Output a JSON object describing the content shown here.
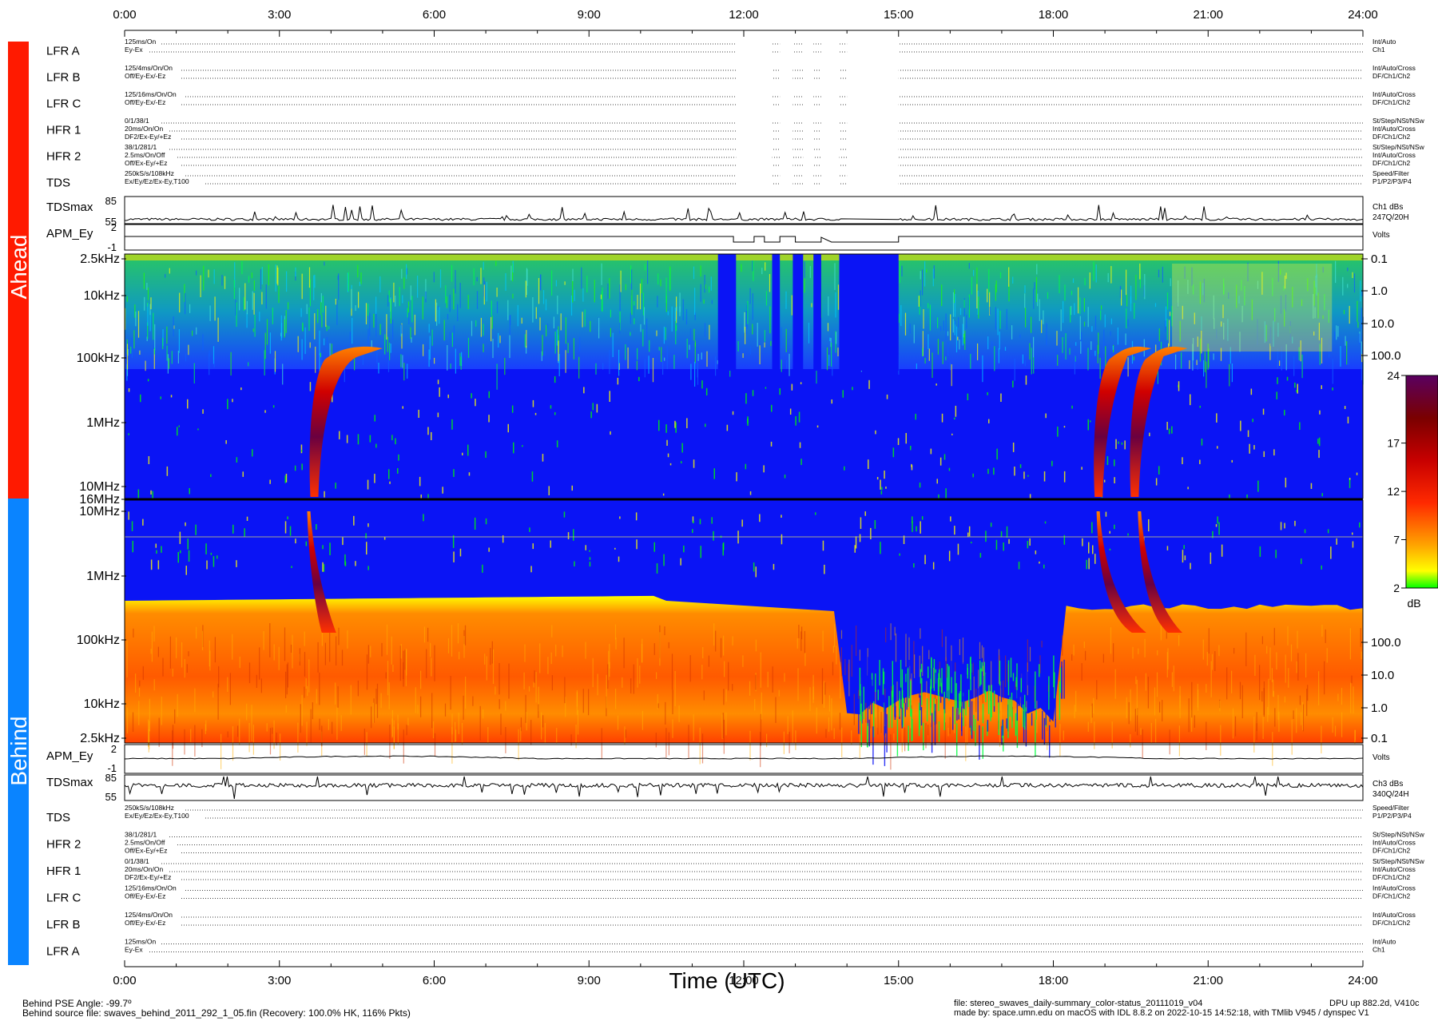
{
  "chart_data": {
    "type": "heatmap",
    "title": "",
    "xlabel": "Time (UTC)",
    "x_ticks": [
      "0:00",
      "3:00",
      "6:00",
      "9:00",
      "12:00",
      "15:00",
      "18:00",
      "21:00",
      "24:00"
    ],
    "x_range_hours": [
      0,
      24
    ],
    "colorbar": {
      "label": "dB",
      "ticks": [
        "24",
        "17",
        "12",
        "7",
        "2"
      ],
      "range": [
        2,
        24
      ],
      "colors": [
        "#00ff00",
        "#ffff00",
        "#ffa500",
        "#ff0000",
        "#aa0000",
        "#6a0000",
        "#5a0060"
      ]
    },
    "spacecraft": [
      {
        "name": "Ahead",
        "color": "#ff1a00"
      },
      {
        "name": "Behind",
        "color": "#0a84ff"
      }
    ],
    "ahead_spectrogram": {
      "y_labels_left": [
        "2.5kHz",
        "10kHz",
        "100kHz",
        "1MHz",
        "10MHz",
        "16MHz"
      ],
      "y_labels_right": [
        "0.1",
        "1.0",
        "10.0",
        "100.0"
      ],
      "data_gaps_hours": [
        [
          12.55,
          12.7
        ],
        [
          12.95,
          13.15
        ],
        [
          13.35,
          13.5
        ],
        [
          13.85,
          15.0
        ]
      ],
      "radio_bursts": [
        {
          "start_hour": 3.6,
          "end_hour": 5.0,
          "peak_db": 24
        },
        {
          "start_hour": 18.8,
          "end_hour": 19.9,
          "peak_db": 24
        },
        {
          "start_hour": 19.5,
          "end_hour": 20.6,
          "peak_db": 24
        }
      ]
    },
    "behind_spectrogram": {
      "y_labels_left": [
        "10MHz",
        "1MHz",
        "100kHz",
        "10kHz",
        "2.5kHz"
      ],
      "y_labels_right": [
        "100.0",
        "10.0",
        "1.0",
        "0.1"
      ],
      "radio_bursts": [
        {
          "start_hour": 3.6,
          "end_hour": 4.1,
          "peak_db": 20
        },
        {
          "start_hour": 18.9,
          "end_hour": 19.8,
          "peak_db": 24
        },
        {
          "start_hour": 19.7,
          "end_hour": 20.5,
          "peak_db": 22
        }
      ]
    },
    "ahead_tdsmax": {
      "label": "TDSmax",
      "y_ticks": [
        "85",
        "55"
      ],
      "right_lines": [
        "Ch1 dBs",
        "247Q/20H"
      ]
    },
    "ahead_apm": {
      "label": "APM_Ey",
      "y_ticks": [
        "2",
        "-1"
      ],
      "right_lines": [
        "Volts"
      ]
    },
    "behind_apm": {
      "label": "APM_Ey",
      "y_ticks": [
        "2",
        "-1"
      ],
      "right_lines": [
        "Volts"
      ]
    },
    "behind_tdsmax": {
      "label": "TDSmax",
      "y_ticks": [
        "85",
        "55"
      ],
      "right_lines": [
        "Ch3 dBs",
        "340Q/24H"
      ]
    }
  },
  "ahead_status_rows": [
    {
      "label": "LFR A",
      "lines": [
        "125ms/On",
        "Ey-Ex"
      ],
      "right_lines": [
        "Int/Auto",
        "Ch1"
      ]
    },
    {
      "label": "LFR B",
      "lines": [
        "125/4ms/On/On",
        "Off/Ey-Ex/-Ez"
      ],
      "right_lines": [
        "Int/Auto/Cross",
        "DF/Ch1/Ch2"
      ]
    },
    {
      "label": "LFR C",
      "lines": [
        "125/16ms/On/On",
        "Off/Ey-Ex/-Ez"
      ],
      "right_lines": [
        "Int/Auto/Cross",
        "DF/Ch1/Ch2"
      ]
    },
    {
      "label": "HFR 1",
      "lines": [
        "0/1/38/1",
        "20ms/On/On",
        "DF2/Ex-Ey/+Ez"
      ],
      "right_lines": [
        "St/Step/NSt/NSw",
        "Int/Auto/Cross",
        "DF/Ch1/Ch2"
      ]
    },
    {
      "label": "HFR 2",
      "lines": [
        "38/1/281/1",
        "2.5ms/On/Off",
        "Off/Ex-Ey/+Ez"
      ],
      "right_lines": [
        "St/Step/NSt/NSw",
        "Int/Auto/Cross",
        "DF/Ch1/Ch2"
      ]
    },
    {
      "label": "TDS",
      "lines": [
        "250kS/s/108kHz",
        "Ex/Ey/Ez/Ex-Ey,T100"
      ],
      "right_lines": [
        "Speed/Filter",
        "P1/P2/P3/P4"
      ]
    }
  ],
  "behind_status_rows": [
    {
      "label": "TDS",
      "lines": [
        "250kS/s/108kHz",
        "Ex/Ey/Ez/Ex-Ey,T100"
      ],
      "right_lines": [
        "Speed/Filter",
        "P1/P2/P3/P4"
      ]
    },
    {
      "label": "HFR 2",
      "lines": [
        "38/1/281/1",
        "2.5ms/On/Off",
        "Off/Ex-Ey/+Ez"
      ],
      "right_lines": [
        "St/Step/NSt/NSw",
        "Int/Auto/Cross",
        "DF/Ch1/Ch2"
      ]
    },
    {
      "label": "HFR 1",
      "lines": [
        "0/1/38/1",
        "20ms/On/On",
        "DF2/Ex-Ey/+Ez"
      ],
      "right_lines": [
        "St/Step/NSt/NSw",
        "Int/Auto/Cross",
        "DF/Ch1/Ch2"
      ]
    },
    {
      "label": "LFR C",
      "lines": [
        "125/16ms/On/On",
        "Off/Ey-Ex/-Ez"
      ],
      "right_lines": [
        "Int/Auto/Cross",
        "DF/Ch1/Ch2"
      ]
    },
    {
      "label": "LFR B",
      "lines": [
        "125/4ms/On/On",
        "Off/Ey-Ex/-Ez"
      ],
      "right_lines": [
        "Int/Auto/Cross",
        "DF/Ch1/Ch2"
      ]
    },
    {
      "label": "LFR A",
      "lines": [
        "125ms/On",
        "Ey-Ex"
      ],
      "right_lines": [
        "Int/Auto",
        "Ch1"
      ]
    }
  ],
  "footer": {
    "pse_angle": "Behind PSE Angle:  -99.7º",
    "source_file": "Behind source file: swaves_behind_2011_292_1_05.fin (Recovery: 100.0% HK, 116% Pkts)",
    "time_axis_title": "Time (UTC)",
    "file_line": "file: stereo_swaves_daily-summary_color-status_20111019_v04",
    "made_by": "made by: space.umn.edu on macOS with IDL 8.8.2 on 2022-10-15 14:52:18, with TMlib V945 / dynspec V1",
    "dpu": "DPU up 882.2d, V410c"
  }
}
